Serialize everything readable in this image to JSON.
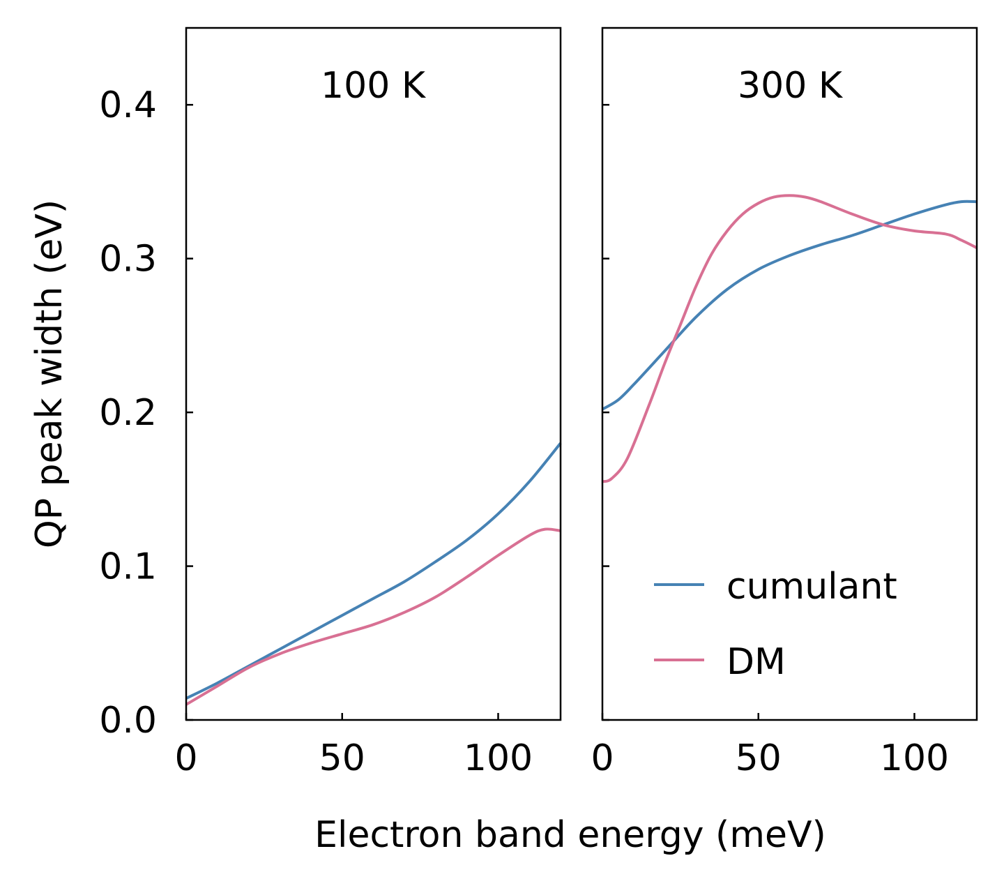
{
  "chart_data": [
    {
      "type": "line",
      "panel_label": "100 K",
      "xlim": [
        0,
        120
      ],
      "ylim": [
        0,
        0.45
      ],
      "xticks": [
        0,
        50,
        100
      ],
      "xtick_labels": [
        "0",
        "50",
        "100"
      ],
      "yticks": [
        0.0,
        0.1,
        0.2,
        0.3,
        0.4
      ],
      "ytick_labels": [
        "0.0",
        "0.1",
        "0.2",
        "0.3",
        "0.4"
      ],
      "series": [
        {
          "name": "cumulant",
          "color": "#4682b4",
          "x": [
            0,
            10,
            20,
            30,
            40,
            50,
            60,
            70,
            80,
            90,
            100,
            110,
            120
          ],
          "y": [
            0.014,
            0.024,
            0.035,
            0.046,
            0.057,
            0.068,
            0.079,
            0.09,
            0.103,
            0.117,
            0.134,
            0.155,
            0.18
          ]
        },
        {
          "name": "DM",
          "color": "#d87093",
          "x": [
            0,
            10,
            20,
            30,
            40,
            50,
            60,
            70,
            80,
            90,
            100,
            110,
            115,
            120
          ],
          "y": [
            0.01,
            0.022,
            0.034,
            0.043,
            0.05,
            0.056,
            0.062,
            0.07,
            0.08,
            0.093,
            0.107,
            0.12,
            0.124,
            0.123
          ]
        }
      ]
    },
    {
      "type": "line",
      "panel_label": "300 K",
      "xlim": [
        0,
        120
      ],
      "ylim": [
        0,
        0.45
      ],
      "xticks": [
        0,
        50,
        100
      ],
      "xtick_labels": [
        "0",
        "50",
        "100"
      ],
      "yticks": [
        0.0,
        0.1,
        0.2,
        0.3,
        0.4
      ],
      "ytick_labels": [
        "",
        "",
        "",
        "",
        ""
      ],
      "series": [
        {
          "name": "cumulant",
          "color": "#4682b4",
          "x": [
            0,
            5,
            10,
            20,
            30,
            40,
            50,
            60,
            70,
            80,
            90,
            100,
            110,
            115,
            120
          ],
          "y": [
            0.202,
            0.208,
            0.218,
            0.24,
            0.262,
            0.28,
            0.293,
            0.302,
            0.309,
            0.315,
            0.322,
            0.329,
            0.335,
            0.337,
            0.337
          ]
        },
        {
          "name": "DM",
          "color": "#d87093",
          "x": [
            0,
            3,
            8,
            15,
            20,
            25,
            30,
            35,
            40,
            45,
            50,
            55,
            60,
            65,
            70,
            80,
            90,
            100,
            110,
            115,
            120
          ],
          "y": [
            0.155,
            0.157,
            0.17,
            0.205,
            0.232,
            0.257,
            0.282,
            0.303,
            0.318,
            0.329,
            0.336,
            0.34,
            0.341,
            0.34,
            0.337,
            0.329,
            0.322,
            0.318,
            0.316,
            0.312,
            0.307
          ]
        }
      ]
    }
  ],
  "axes": {
    "ylabel": "QP peak width (eV)",
    "xlabel": "Electron band energy (meV)"
  },
  "legend": {
    "placement": "bottom-right of right panel",
    "entries": [
      {
        "label": "cumulant",
        "color": "#4682b4"
      },
      {
        "label": "DM",
        "color": "#d87093"
      }
    ]
  }
}
